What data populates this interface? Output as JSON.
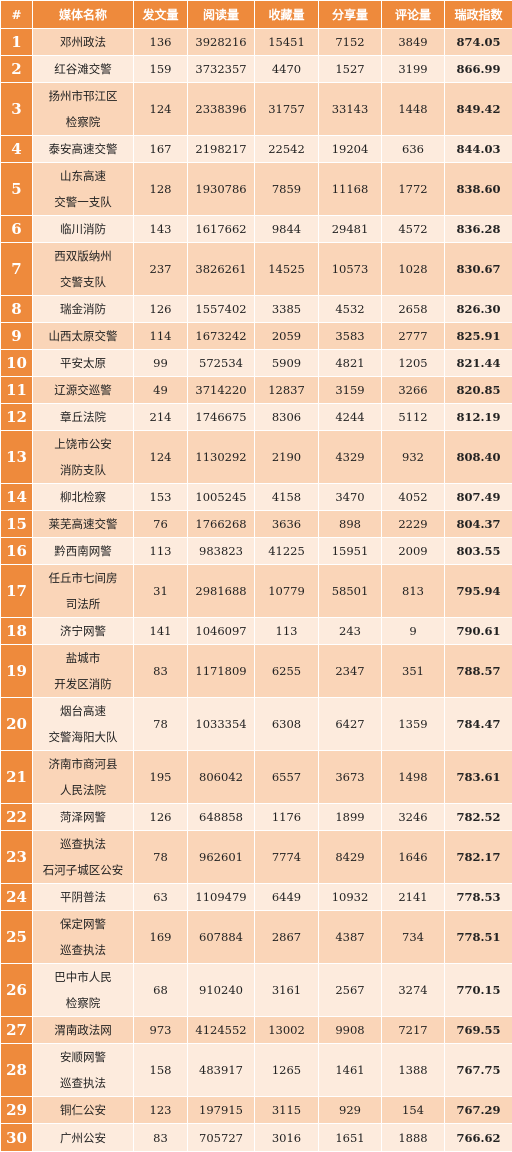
{
  "headers": [
    "#",
    "媒体名称",
    "发文量",
    "阅读量",
    "收藏量",
    "分享量",
    "评论量",
    "瑞政指数"
  ],
  "rows": [
    {
      "rank": "1",
      "name": [
        "邓州政法"
      ],
      "posts": "136",
      "reads": "3928216",
      "favorites": "15451",
      "shares": "7152",
      "comments": "3849",
      "index": "874.05"
    },
    {
      "rank": "2",
      "name": [
        "红谷滩交警"
      ],
      "posts": "159",
      "reads": "3732357",
      "favorites": "4470",
      "shares": "1527",
      "comments": "3199",
      "index": "866.99"
    },
    {
      "rank": "3",
      "name": [
        "扬州市邗江区",
        "检察院"
      ],
      "posts": "124",
      "reads": "2338396",
      "favorites": "31757",
      "shares": "33143",
      "comments": "1448",
      "index": "849.42"
    },
    {
      "rank": "4",
      "name": [
        "泰安高速交警"
      ],
      "posts": "167",
      "reads": "2198217",
      "favorites": "22542",
      "shares": "19204",
      "comments": "636",
      "index": "844.03"
    },
    {
      "rank": "5",
      "name": [
        "山东高速",
        "交警一支队"
      ],
      "posts": "128",
      "reads": "1930786",
      "favorites": "7859",
      "shares": "11168",
      "comments": "1772",
      "index": "838.60"
    },
    {
      "rank": "6",
      "name": [
        "临川消防"
      ],
      "posts": "143",
      "reads": "1617662",
      "favorites": "9844",
      "shares": "29481",
      "comments": "4572",
      "index": "836.28"
    },
    {
      "rank": "7",
      "name": [
        "西双版纳州",
        "交警支队"
      ],
      "posts": "237",
      "reads": "3826261",
      "favorites": "14525",
      "shares": "10573",
      "comments": "1028",
      "index": "830.67"
    },
    {
      "rank": "8",
      "name": [
        "瑞金消防"
      ],
      "posts": "126",
      "reads": "1557402",
      "favorites": "3385",
      "shares": "4532",
      "comments": "2658",
      "index": "826.30"
    },
    {
      "rank": "9",
      "name": [
        "山西太原交警"
      ],
      "posts": "114",
      "reads": "1673242",
      "favorites": "2059",
      "shares": "3583",
      "comments": "2777",
      "index": "825.91"
    },
    {
      "rank": "10",
      "name": [
        "平安太原"
      ],
      "posts": "99",
      "reads": "572534",
      "favorites": "5909",
      "shares": "4821",
      "comments": "1205",
      "index": "821.44"
    },
    {
      "rank": "11",
      "name": [
        "辽源交巡警"
      ],
      "posts": "49",
      "reads": "3714220",
      "favorites": "12837",
      "shares": "3159",
      "comments": "3266",
      "index": "820.85"
    },
    {
      "rank": "12",
      "name": [
        "章丘法院"
      ],
      "posts": "214",
      "reads": "1746675",
      "favorites": "8306",
      "shares": "4244",
      "comments": "5112",
      "index": "812.19"
    },
    {
      "rank": "13",
      "name": [
        "上饶市公安",
        "消防支队"
      ],
      "posts": "124",
      "reads": "1130292",
      "favorites": "2190",
      "shares": "4329",
      "comments": "932",
      "index": "808.40"
    },
    {
      "rank": "14",
      "name": [
        "柳北检察"
      ],
      "posts": "153",
      "reads": "1005245",
      "favorites": "4158",
      "shares": "3470",
      "comments": "4052",
      "index": "807.49"
    },
    {
      "rank": "15",
      "name": [
        "莱芜高速交警"
      ],
      "posts": "76",
      "reads": "1766268",
      "favorites": "3636",
      "shares": "898",
      "comments": "2229",
      "index": "804.37"
    },
    {
      "rank": "16",
      "name": [
        "黔西南网警"
      ],
      "posts": "113",
      "reads": "983823",
      "favorites": "41225",
      "shares": "15951",
      "comments": "2009",
      "index": "803.55"
    },
    {
      "rank": "17",
      "name": [
        "任丘市七间房",
        "司法所"
      ],
      "posts": "31",
      "reads": "2981688",
      "favorites": "10779",
      "shares": "58501",
      "comments": "813",
      "index": "795.94"
    },
    {
      "rank": "18",
      "name": [
        "济宁网警"
      ],
      "posts": "141",
      "reads": "1046097",
      "favorites": "113",
      "shares": "243",
      "comments": "9",
      "index": "790.61"
    },
    {
      "rank": "19",
      "name": [
        "盐城市",
        "开发区消防"
      ],
      "posts": "83",
      "reads": "1171809",
      "favorites": "6255",
      "shares": "2347",
      "comments": "351",
      "index": "788.57"
    },
    {
      "rank": "20",
      "name": [
        "烟台高速",
        "交警海阳大队"
      ],
      "posts": "78",
      "reads": "1033354",
      "favorites": "6308",
      "shares": "6427",
      "comments": "1359",
      "index": "784.47"
    },
    {
      "rank": "21",
      "name": [
        "济南市商河县",
        "人民法院"
      ],
      "posts": "195",
      "reads": "806042",
      "favorites": "6557",
      "shares": "3673",
      "comments": "1498",
      "index": "783.61"
    },
    {
      "rank": "22",
      "name": [
        "菏泽网警"
      ],
      "posts": "126",
      "reads": "648858",
      "favorites": "1176",
      "shares": "1899",
      "comments": "3246",
      "index": "782.52"
    },
    {
      "rank": "23",
      "name": [
        "巡查执法",
        "石河子城区公安"
      ],
      "posts": "78",
      "reads": "962601",
      "favorites": "7774",
      "shares": "8429",
      "comments": "1646",
      "index": "782.17"
    },
    {
      "rank": "24",
      "name": [
        "平阴普法"
      ],
      "posts": "63",
      "reads": "1109479",
      "favorites": "6449",
      "shares": "10932",
      "comments": "2141",
      "index": "778.53"
    },
    {
      "rank": "25",
      "name": [
        "保定网警",
        "巡查执法"
      ],
      "posts": "169",
      "reads": "607884",
      "favorites": "2867",
      "shares": "4387",
      "comments": "734",
      "index": "778.51"
    },
    {
      "rank": "26",
      "name": [
        "巴中市人民",
        "检察院"
      ],
      "posts": "68",
      "reads": "910240",
      "favorites": "3161",
      "shares": "2567",
      "comments": "3274",
      "index": "770.15"
    },
    {
      "rank": "27",
      "name": [
        "渭南政法网"
      ],
      "posts": "973",
      "reads": "4124552",
      "favorites": "13002",
      "shares": "9908",
      "comments": "7217",
      "index": "769.55"
    },
    {
      "rank": "28",
      "name": [
        "安顺网警",
        "巡查执法"
      ],
      "posts": "158",
      "reads": "483917",
      "favorites": "1265",
      "shares": "1461",
      "comments": "1388",
      "index": "767.75"
    },
    {
      "rank": "29",
      "name": [
        "铜仁公安"
      ],
      "posts": "123",
      "reads": "197915",
      "favorites": "3115",
      "shares": "929",
      "comments": "154",
      "index": "767.29"
    },
    {
      "rank": "30",
      "name": [
        "广州公安"
      ],
      "posts": "83",
      "reads": "705727",
      "favorites": "3016",
      "shares": "1651",
      "comments": "1888",
      "index": "766.62"
    }
  ]
}
